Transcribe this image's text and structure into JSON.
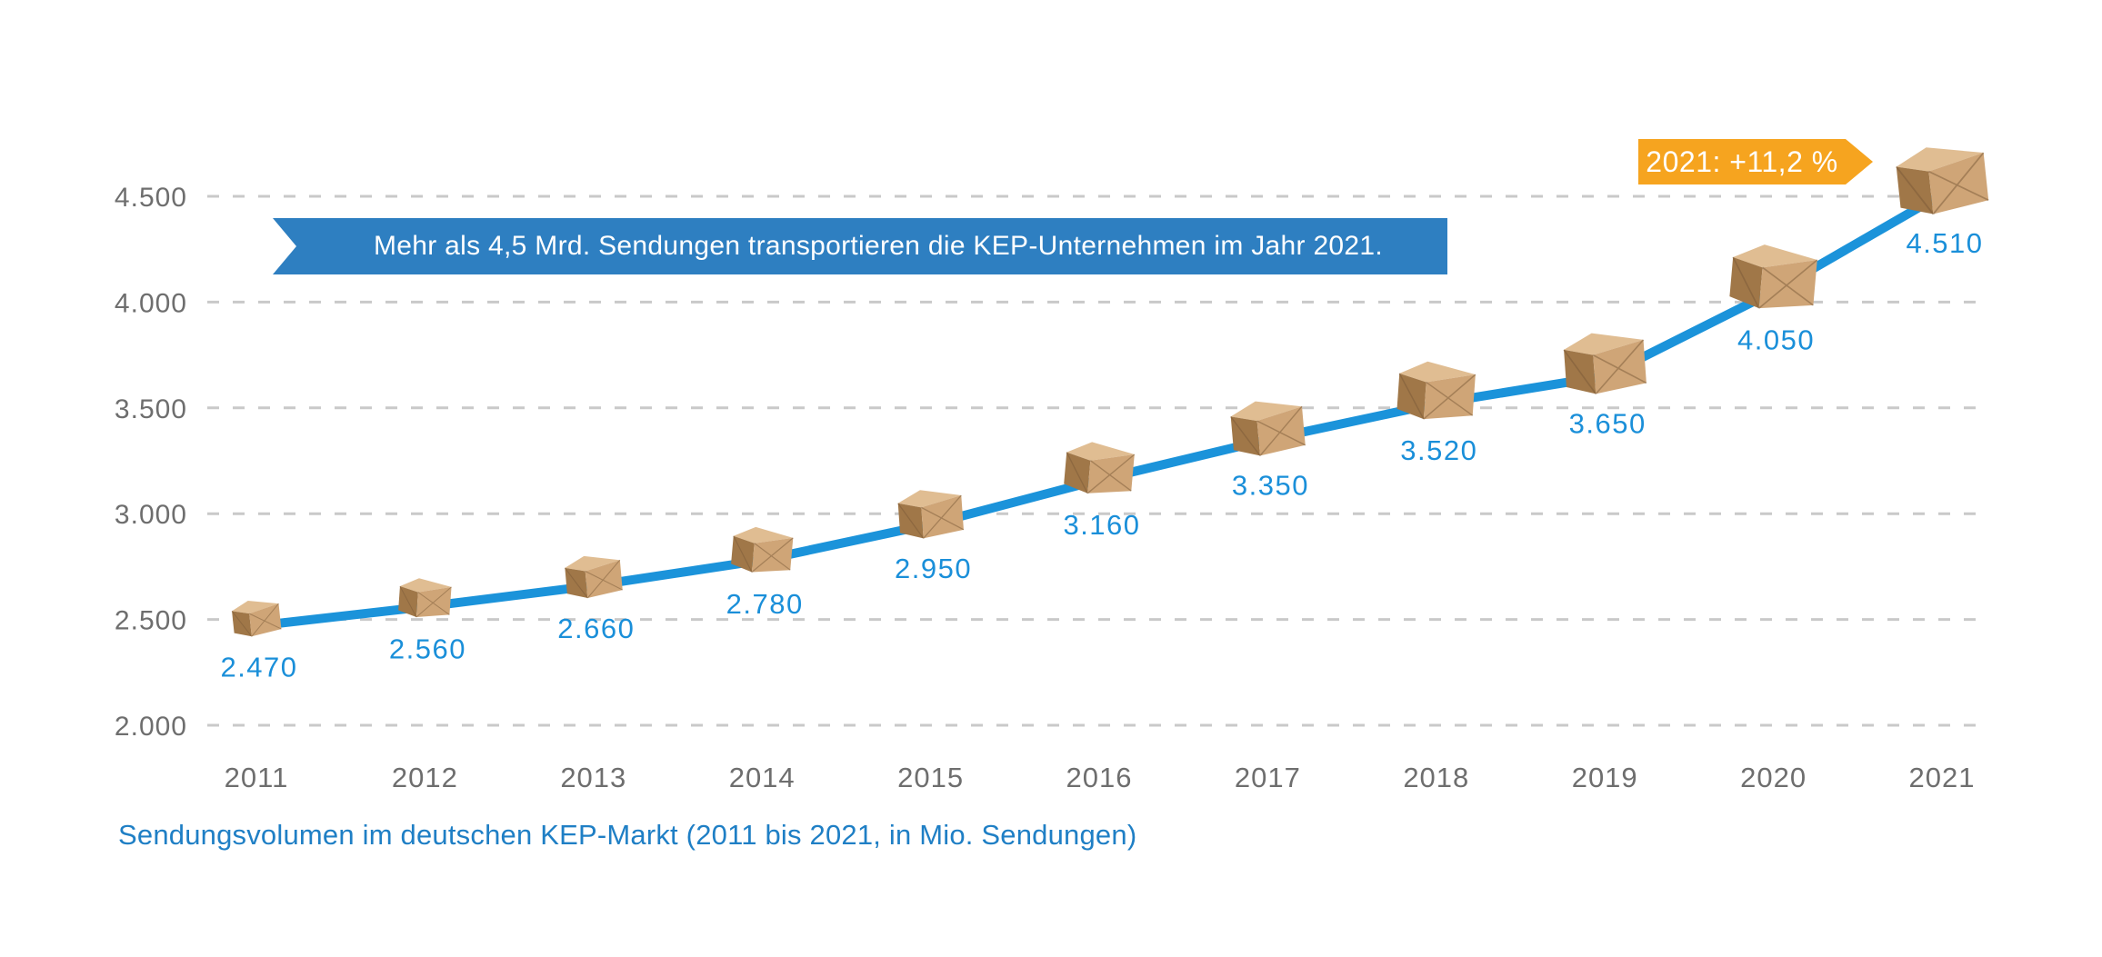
{
  "chart_data": {
    "type": "line",
    "title": "Sendungsvolumen im deutschen KEP-Markt (2011 bis 2021, in Mio. Sendungen)",
    "categories": [
      "2011",
      "2012",
      "2013",
      "2014",
      "2015",
      "2016",
      "2017",
      "2018",
      "2019",
      "2020",
      "2021"
    ],
    "values": [
      2470,
      2560,
      2660,
      2780,
      2950,
      3160,
      3350,
      3520,
      3650,
      4050,
      4510
    ],
    "point_labels": [
      "2.470",
      "2.560",
      "2.660",
      "2.780",
      "2.950",
      "3.160",
      "3.350",
      "3.520",
      "3.650",
      "4.050",
      "4.510"
    ],
    "y_ticks": [
      {
        "value": 2000,
        "label": "2.000"
      },
      {
        "value": 2500,
        "label": "2.500"
      },
      {
        "value": 3000,
        "label": "3.000"
      },
      {
        "value": 3500,
        "label": "3.500"
      },
      {
        "value": 4000,
        "label": "4.000"
      },
      {
        "value": 4500,
        "label": "4.500"
      }
    ],
    "ylim": [
      2000,
      4750
    ],
    "xlabel": "",
    "ylabel": "",
    "grid": "horizontal-dashed",
    "legend": "none",
    "marker": "cardboard-parcel-box",
    "annotations": [
      {
        "id": "headline-ribbon",
        "text": "Mehr als 4,5 Mrd. Sendungen transportieren die KEP-Unternehmen im Jahr 2021."
      },
      {
        "id": "growth-badge",
        "text": "2021: +11,2 %"
      }
    ]
  },
  "colors": {
    "line": "#1b93da",
    "value_label": "#1a8fd9",
    "axis_text": "#6e6e6e",
    "gridline": "#c9c9c9",
    "banner_bg": "#2e7fc1",
    "banner_text": "#ffffff",
    "badge_bg": "#f6a41f",
    "badge_text": "#ffffff",
    "caption_text": "#1f7fc5",
    "box_top": "#e0bd92",
    "box_left": "#a07748",
    "box_right": "#cfa577",
    "box_crease": "#7a5a38"
  }
}
